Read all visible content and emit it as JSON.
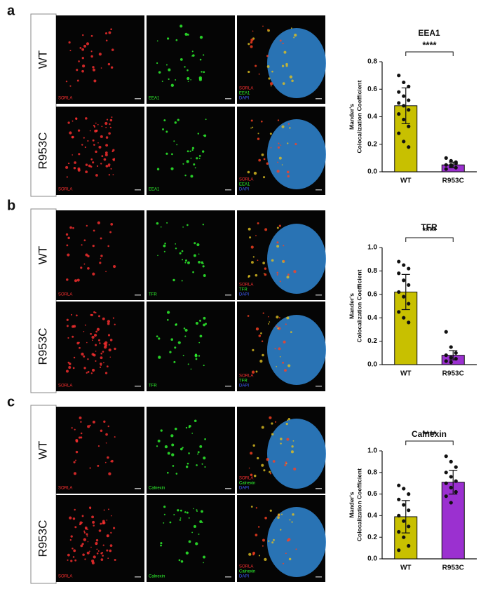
{
  "panels": [
    {
      "label": "a",
      "rows": [
        "WT",
        "R953C"
      ],
      "channels": [
        [
          "SORLA"
        ],
        [
          "EEA1"
        ],
        [
          "SORLA",
          "EEA1",
          "DAPI"
        ]
      ]
    },
    {
      "label": "b",
      "rows": [
        "WT",
        "R953C"
      ],
      "channels": [
        [
          "SORLA"
        ],
        [
          "TFR"
        ],
        [
          "SORLA",
          "TFR",
          "DAPI"
        ]
      ]
    },
    {
      "label": "c",
      "rows": [
        "WT",
        "R953C"
      ],
      "channels": [
        [
          "SORLA"
        ],
        [
          "Calnexin"
        ],
        [
          "SORLA",
          "Calnexin",
          "DAPI"
        ]
      ]
    }
  ],
  "chart_data": [
    {
      "type": "bar",
      "title": "EEA1",
      "ylabel": [
        "Mander's",
        "Colocalization Coefficient"
      ],
      "annotation": "****",
      "categories": [
        "WT",
        "R953C"
      ],
      "values": [
        0.48,
        0.05
      ],
      "errors": [
        0.13,
        0.02
      ],
      "colors": [
        "#c8c000",
        "#9b30d0"
      ],
      "points": [
        [
          0.7,
          0.65,
          0.62,
          0.58,
          0.55,
          0.52,
          0.5,
          0.48,
          0.45,
          0.42,
          0.38,
          0.33,
          0.28,
          0.22,
          0.18
        ],
        [
          0.1,
          0.08,
          0.06,
          0.05,
          0.04,
          0.03,
          0.02,
          0.05,
          0.07
        ]
      ],
      "ylim": [
        0,
        0.8
      ],
      "yticks": [
        {
          "value": 0,
          "label": "0.0"
        },
        0.2,
        0.4,
        0.6,
        0.8
      ]
    },
    {
      "type": "bar",
      "title": "TFR",
      "ylabel": [
        "Mander's",
        "Colocalization Coefficient"
      ],
      "annotation": "****",
      "categories": [
        "WT",
        "R953C"
      ],
      "values": [
        0.62,
        0.08
      ],
      "errors": [
        0.15,
        0.04
      ],
      "colors": [
        "#c8c000",
        "#9b30d0"
      ],
      "points": [
        [
          0.88,
          0.85,
          0.82,
          0.78,
          0.72,
          0.68,
          0.62,
          0.58,
          0.52,
          0.45,
          0.4,
          0.36
        ],
        [
          0.28,
          0.15,
          0.1,
          0.08,
          0.06,
          0.05,
          0.03,
          0.02
        ]
      ],
      "ylim": [
        0,
        1
      ],
      "yticks": [
        {
          "value": 0,
          "label": "0.0"
        },
        0.2,
        0.4,
        0.6,
        0.8,
        {
          "value": 1,
          "label": "1.0"
        }
      ]
    },
    {
      "type": "bar",
      "title": "Calnexin",
      "ylabel": [
        "Mander's",
        "Colocalization Coefficient"
      ],
      "annotation": "****",
      "categories": [
        "WT",
        "R953C"
      ],
      "values": [
        0.39,
        0.71
      ],
      "errors": [
        0.15,
        0.11
      ],
      "colors": [
        "#c8c000",
        "#9b30d0"
      ],
      "points": [
        [
          0.68,
          0.65,
          0.6,
          0.55,
          0.5,
          0.45,
          0.4,
          0.35,
          0.3,
          0.25,
          0.2,
          0.12,
          0.08
        ],
        [
          0.95,
          0.9,
          0.85,
          0.8,
          0.76,
          0.72,
          0.7,
          0.66,
          0.62,
          0.58,
          0.52
        ]
      ],
      "ylim": [
        0,
        1
      ],
      "yticks": [
        {
          "value": 0,
          "label": "0.0"
        },
        0.2,
        0.4,
        0.6,
        0.8,
        {
          "value": 1,
          "label": "1.0"
        }
      ]
    }
  ]
}
